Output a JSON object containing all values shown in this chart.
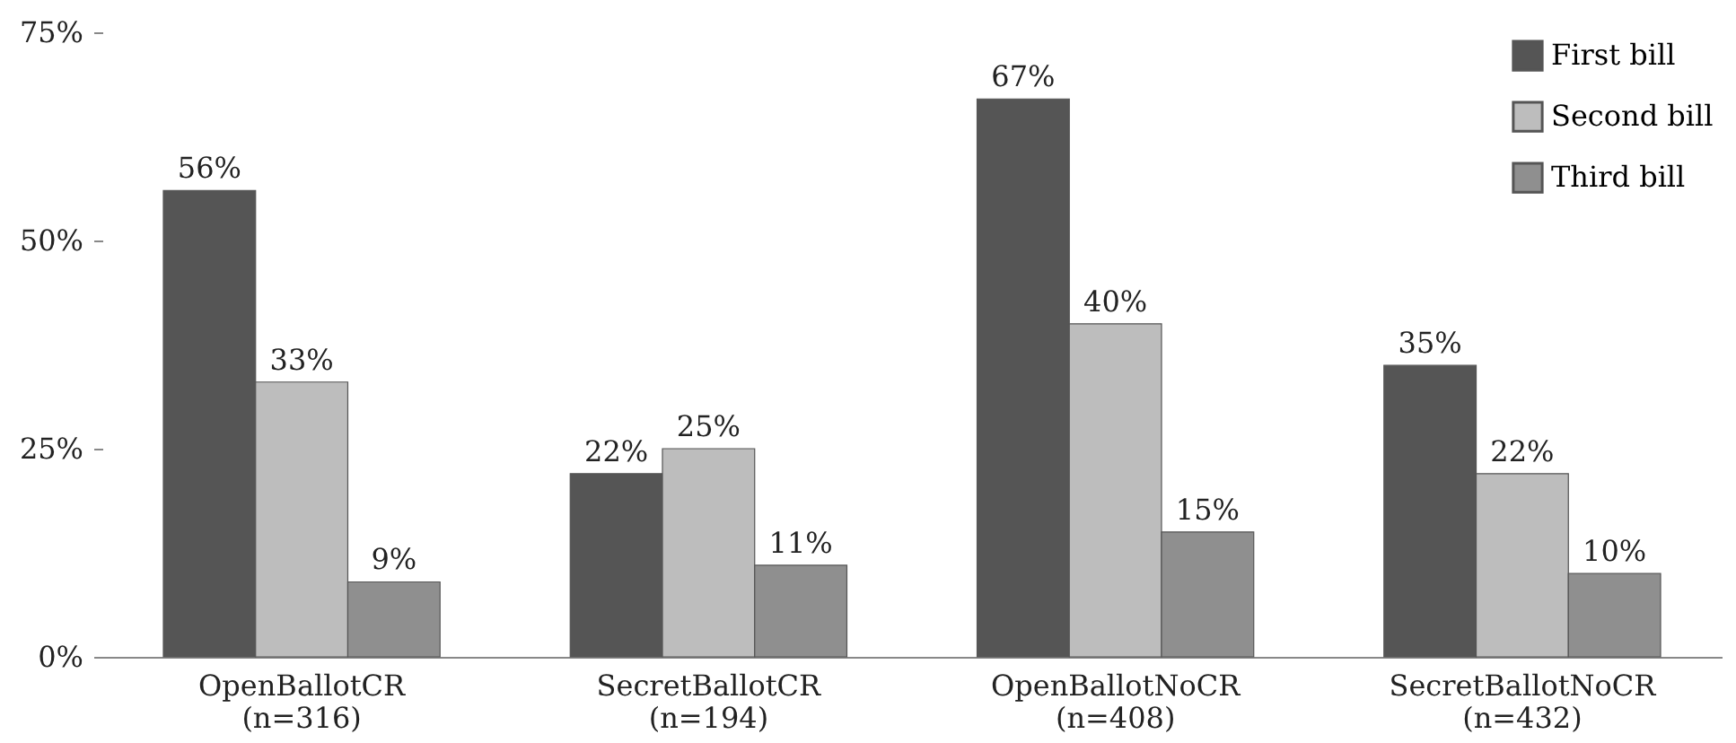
{
  "chart_data": {
    "type": "bar",
    "categories": [
      "OpenBallotCR\n(n=316)",
      "SecretBallotCR\n(n=194)",
      "OpenBallotNoCR\n(n=408)",
      "SecretBallotNoCR\n(n=432)"
    ],
    "series": [
      {
        "name": "First bill",
        "color": "#555555",
        "values": [
          56,
          22,
          67,
          35
        ],
        "value_labels": [
          "56%",
          "22%",
          "67%",
          "35%"
        ]
      },
      {
        "name": "Second bill",
        "color": "#bdbdbd",
        "values": [
          33,
          25,
          40,
          22
        ],
        "value_labels": [
          "33%",
          "25%",
          "40%",
          "22%"
        ]
      },
      {
        "name": "Third bill",
        "color": "#8f8f8f",
        "values": [
          9,
          11,
          15,
          10
        ],
        "value_labels": [
          "9%",
          "11%",
          "15%",
          "10%"
        ]
      }
    ],
    "ylim": [
      0,
      75
    ],
    "yticks": [
      {
        "value": 0,
        "label": "0%"
      },
      {
        "value": 25,
        "label": "25%"
      },
      {
        "value": 50,
        "label": "50%"
      },
      {
        "value": 75,
        "label": "75%"
      }
    ],
    "grid": false,
    "legend": "top right"
  }
}
